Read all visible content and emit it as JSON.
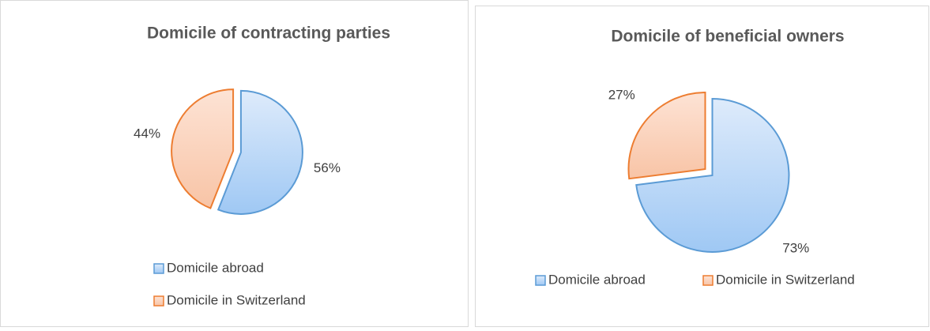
{
  "chart_data": [
    {
      "type": "pie",
      "title": "Domicile of contracting parties",
      "categories": [
        "Domicile abroad",
        "Domicile in Switzerland"
      ],
      "values": [
        56,
        44
      ],
      "value_labels": [
        "56%",
        "44%"
      ],
      "colors": [
        "#5b9bd5",
        "#ed7d31"
      ],
      "legend": "bottom"
    },
    {
      "type": "pie",
      "title": "Domicile of beneficial owners",
      "categories": [
        "Domicile abroad",
        "Domicile in Switzerland"
      ],
      "values": [
        73,
        27
      ],
      "value_labels": [
        "73%",
        "27%"
      ],
      "colors": [
        "#5b9bd5",
        "#ed7d31"
      ],
      "legend": "bottom"
    }
  ]
}
